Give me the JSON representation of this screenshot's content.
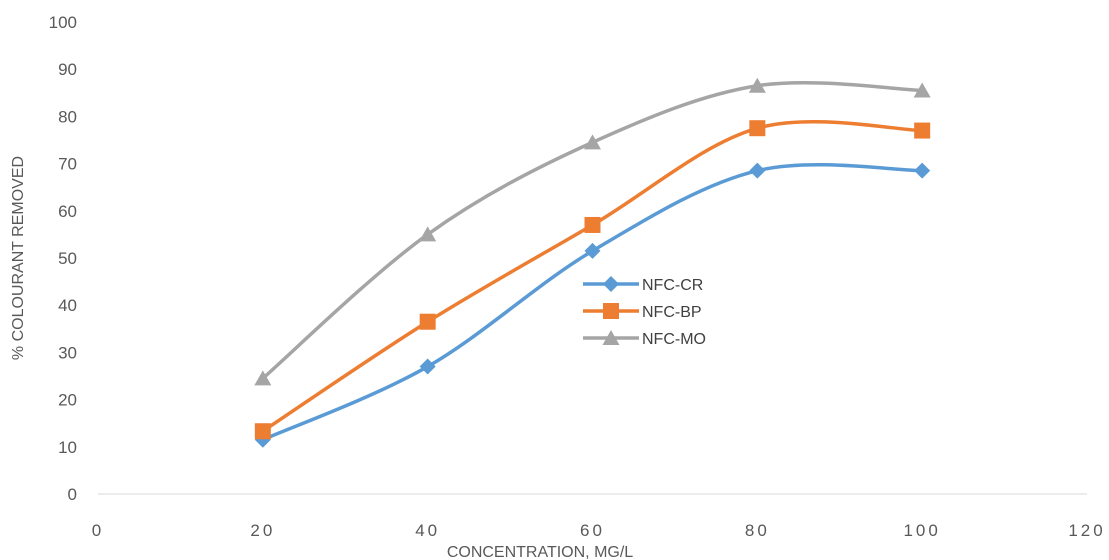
{
  "chart_data": {
    "type": "line",
    "title": "",
    "xlabel": "CONCENTRATION, MG/L",
    "ylabel": "% COLOURANT REMOVED",
    "xlim": [
      0,
      120
    ],
    "ylim": [
      0,
      100
    ],
    "x_ticks": [
      0,
      20,
      40,
      60,
      80,
      100,
      120
    ],
    "y_ticks": [
      0,
      10,
      20,
      30,
      40,
      50,
      60,
      70,
      80,
      90,
      100
    ],
    "grid": false,
    "smooth": true,
    "legend_position": "center",
    "x": [
      20,
      40,
      60,
      80,
      100
    ],
    "series": [
      {
        "name": "NFC-CR",
        "color": "#5B9BD5",
        "marker": "diamond",
        "values": [
          11.5,
          27,
          51.5,
          68.5,
          68.5
        ]
      },
      {
        "name": "NFC-BP",
        "color": "#ED7D31",
        "marker": "square",
        "values": [
          13.3,
          36.5,
          57,
          77.5,
          77
        ]
      },
      {
        "name": "NFC-MO",
        "color": "#A5A5A5",
        "marker": "triangle",
        "values": [
          24.5,
          55,
          74.5,
          86.5,
          85.5
        ]
      }
    ]
  }
}
